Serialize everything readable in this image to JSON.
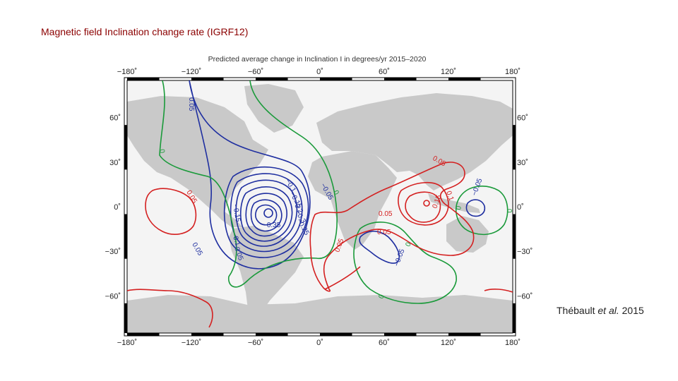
{
  "slide": {
    "title": "Magnetic field Inclination change rate (IGRF12)",
    "citation_prefix": "Thébault ",
    "citation_etal": "et al.",
    "citation_year": " 2015"
  },
  "figure": {
    "title": "Predicted average change in Inclination I in degrees/yr 2015–2020",
    "lon_ticks": [
      "−180˚",
      "−120˚",
      "−60˚",
      "0˚",
      "60˚",
      "120˚",
      "180˚"
    ],
    "lat_ticks": [
      "60˚",
      "30˚",
      "0˚",
      "−30˚",
      "−60˚"
    ],
    "contour_labels": {
      "c1": "0.05",
      "c2": "0",
      "c3": "0.05",
      "c4": "−0.1",
      "c5": "−0.15",
      "c6": "0.05",
      "c7": "−0.35",
      "c8": "−0.15",
      "c9": "−0.25",
      "c10": "−0.3",
      "c11": "−0.2",
      "c12": "−0.05",
      "c13": "0",
      "c14": "0.1",
      "c15": "−0.05",
      "c16": "0.05",
      "c17": "0.05",
      "c18": "0.05",
      "c19": "0.1",
      "c20": "0.15",
      "c21": "−0.05",
      "c22": "0",
      "c23": "0.05",
      "c24": "0",
      "c25": "−0.05",
      "c26": "0",
      "c27": "0"
    },
    "colors": {
      "negative": "#1f2fa0",
      "zero": "#1a9a3a",
      "positive": "#d42020",
      "land": "#c8c8c8",
      "ocean": "#f4f4f4"
    }
  }
}
